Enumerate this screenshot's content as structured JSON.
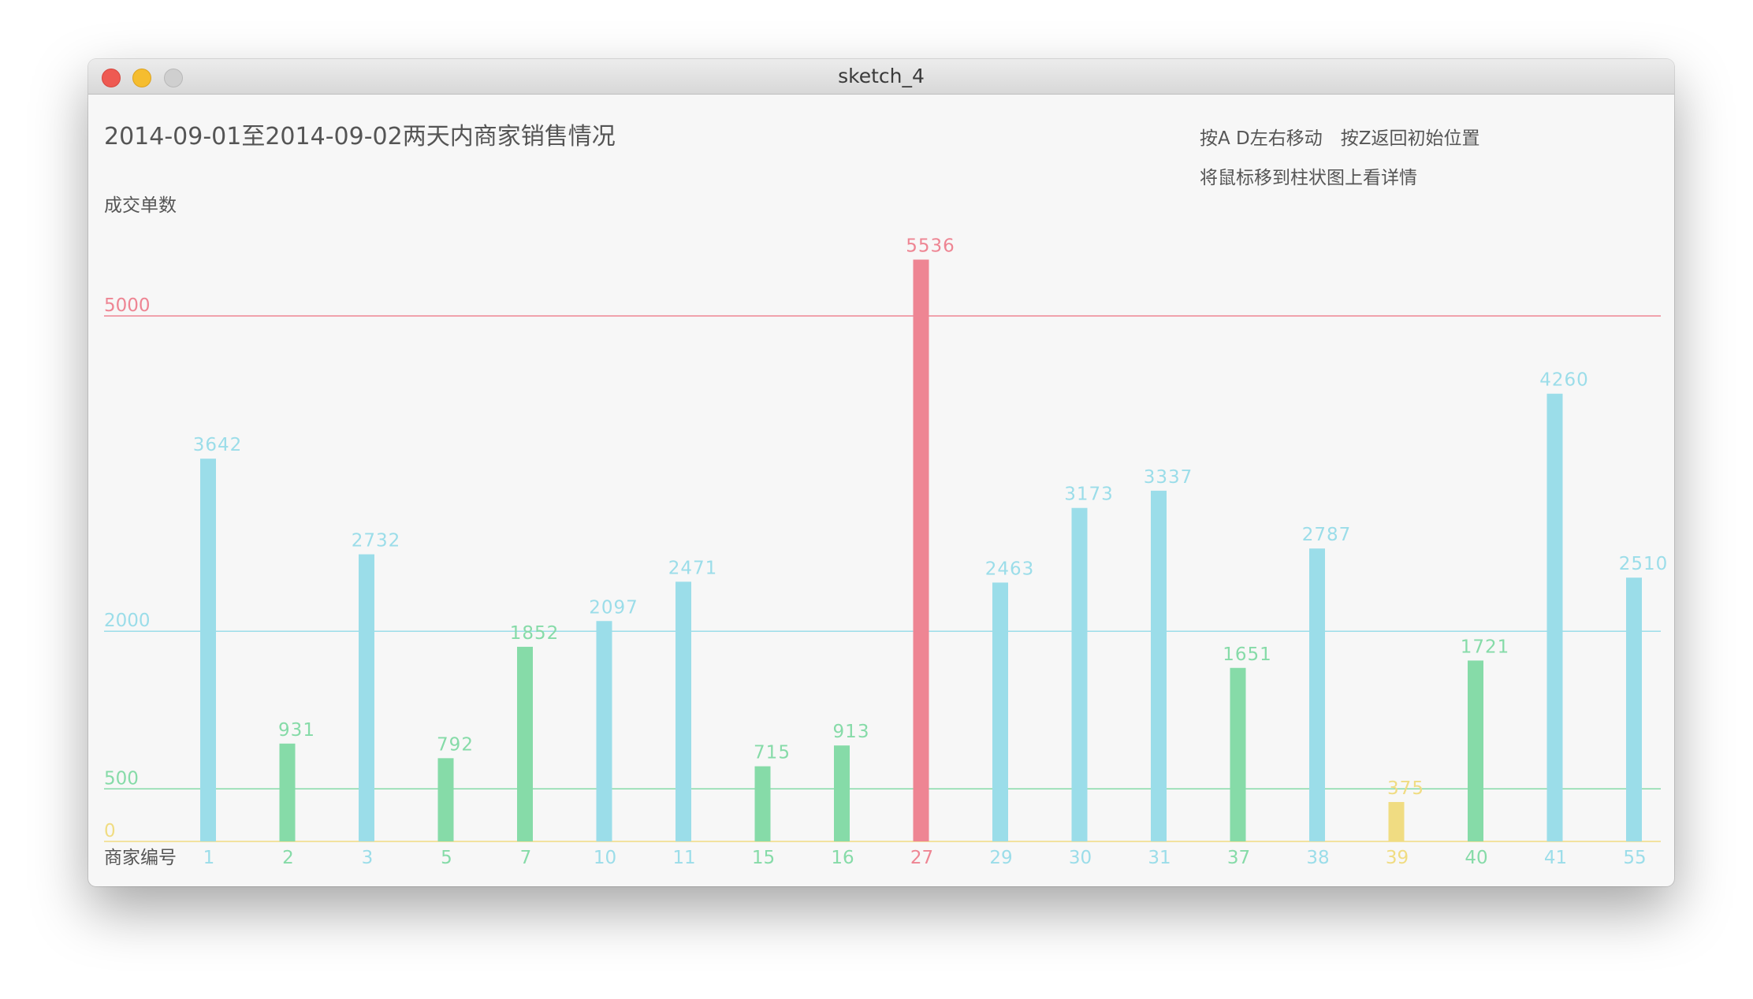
{
  "window": {
    "title": "sketch_4"
  },
  "header": {
    "title": "2014-09-01至2014-09-02两天内商家销售情况",
    "hint_move": "按A D左右移动　按Z返回初始位置",
    "hint_hover": "将鼠标移到柱状图上看详情"
  },
  "chart_data": {
    "type": "bar",
    "ylabel": "成交单数",
    "xlabel": "商家编号",
    "ylim": [
      0,
      5536
    ],
    "reference_lines": [
      {
        "value": 0,
        "label": "0",
        "color": "#f0dc82"
      },
      {
        "value": 500,
        "label": "500",
        "color": "#86dba8"
      },
      {
        "value": 2000,
        "label": "2000",
        "color": "#9bdde9"
      },
      {
        "value": 5000,
        "label": "5000",
        "color": "#ee8593"
      }
    ],
    "colors": {
      "below_500": "#f0dc82",
      "500_to_2000": "#86dba8",
      "2000_to_5000": "#9bdde9",
      "above_5000": "#ee8593",
      "axis_text": "#555555"
    },
    "categories": [
      "1",
      "2",
      "3",
      "5",
      "7",
      "10",
      "11",
      "15",
      "16",
      "27",
      "29",
      "30",
      "31",
      "37",
      "38",
      "39",
      "40",
      "41",
      "55"
    ],
    "values": [
      3642,
      931,
      2732,
      792,
      1852,
      2097,
      2471,
      715,
      913,
      5536,
      2463,
      3173,
      3337,
      1651,
      2787,
      375,
      1721,
      4260,
      2510
    ]
  }
}
